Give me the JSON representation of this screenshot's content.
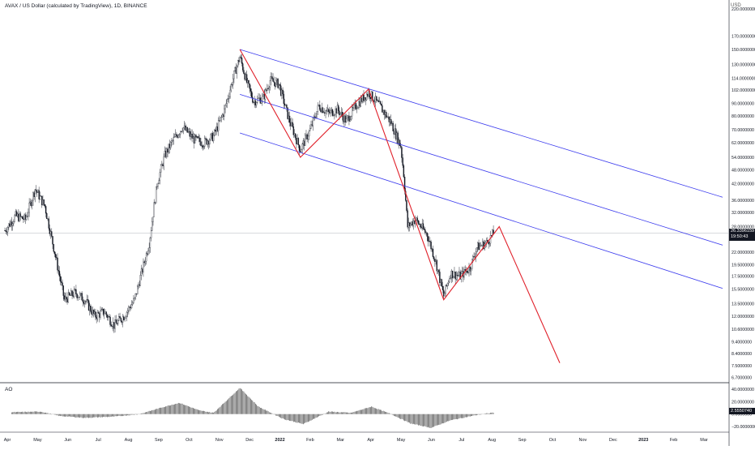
{
  "header": {
    "symbol_title": "AVAX / US Dollar (calculated by TradingView), 1D, BINANCE",
    "currency": "USD"
  },
  "price_scale": {
    "labels": [
      "220.0000000",
      "170.0000000",
      "150.0000000",
      "130.0000000",
      "114.0000000",
      "102.0000000",
      "90.0000000",
      "80.0000000",
      "70.0000000",
      "62.0000000",
      "54.0000000",
      "48.0000000",
      "42.0000000",
      "36.0000000",
      "32.0000000",
      "28.0000000",
      "22.0000000",
      "19.5000000",
      "17.5000000",
      "15.5000000",
      "13.5000000",
      "12.0000000",
      "10.6000000",
      "9.4000000",
      "8.4000000",
      "7.5000000",
      "6.7000000"
    ],
    "current_price": "26.3396159",
    "countdown": "19:50:43"
  },
  "indicator": {
    "title": "AO",
    "scale_labels": [
      "40.0000000",
      "20.0000000",
      "0.0000000",
      "−20.0000000"
    ],
    "current_value": "2.5550740"
  },
  "time_axis": {
    "labels": [
      "Apr",
      "May",
      "Jun",
      "Jul",
      "Aug",
      "Sep",
      "Oct",
      "Nov",
      "Dec",
      "2022",
      "Feb",
      "Mar",
      "Apr",
      "May",
      "Jun",
      "Jul",
      "Aug",
      "Sep",
      "Oct",
      "Nov",
      "Dec",
      "2023",
      "Feb",
      "Mar"
    ]
  },
  "colors": {
    "channel": "#3a3aee",
    "pattern": "#e0202a",
    "candle": "#131722",
    "grid_line": "#b2b5be"
  },
  "chart_data": {
    "type": "candlestick",
    "symbol": "AVAX/USD",
    "interval": "1D",
    "exchange": "BINANCE",
    "log_scale": true,
    "close_path": [
      [
        "2021-03-25",
        27
      ],
      [
        "2021-04-05",
        31
      ],
      [
        "2021-04-15",
        30
      ],
      [
        "2021-04-25",
        40
      ],
      [
        "2021-05-05",
        34
      ],
      [
        "2021-05-15",
        22
      ],
      [
        "2021-05-25",
        14
      ],
      [
        "2021-06-05",
        15
      ],
      [
        "2021-06-15",
        14
      ],
      [
        "2021-06-25",
        12
      ],
      [
        "2021-07-05",
        12.5
      ],
      [
        "2021-07-15",
        11
      ],
      [
        "2021-07-25",
        12
      ],
      [
        "2021-08-05",
        14
      ],
      [
        "2021-08-12",
        18
      ],
      [
        "2021-08-20",
        24
      ],
      [
        "2021-08-28",
        42
      ],
      [
        "2021-09-05",
        55
      ],
      [
        "2021-09-12",
        62
      ],
      [
        "2021-09-23",
        72
      ],
      [
        "2021-10-05",
        64
      ],
      [
        "2021-10-15",
        62
      ],
      [
        "2021-10-25",
        66
      ],
      [
        "2021-11-05",
        84
      ],
      [
        "2021-11-15",
        118
      ],
      [
        "2021-11-21",
        140
      ],
      [
        "2021-11-28",
        110
      ],
      [
        "2021-12-05",
        92
      ],
      [
        "2021-12-15",
        95
      ],
      [
        "2021-12-22",
        112
      ],
      [
        "2021-12-31",
        108
      ],
      [
        "2022-01-10",
        78
      ],
      [
        "2022-01-22",
        58
      ],
      [
        "2022-02-01",
        70
      ],
      [
        "2022-02-10",
        88
      ],
      [
        "2022-02-20",
        82
      ],
      [
        "2022-03-01",
        85
      ],
      [
        "2022-03-10",
        76
      ],
      [
        "2022-03-20",
        88
      ],
      [
        "2022-04-02",
        100
      ],
      [
        "2022-04-15",
        86
      ],
      [
        "2022-04-25",
        75
      ],
      [
        "2022-05-05",
        60
      ],
      [
        "2022-05-08",
        46
      ],
      [
        "2022-05-12",
        28
      ],
      [
        "2022-05-20",
        30
      ],
      [
        "2022-06-01",
        26
      ],
      [
        "2022-06-10",
        20
      ],
      [
        "2022-06-18",
        14.5
      ],
      [
        "2022-06-25",
        18
      ],
      [
        "2022-07-05",
        17.5
      ],
      [
        "2022-07-15",
        19
      ],
      [
        "2022-07-22",
        23
      ],
      [
        "2022-08-01",
        24
      ],
      [
        "2022-08-08",
        26.3
      ]
    ],
    "drawings": {
      "descending_channel": {
        "upper_line": [
          [
            "2021-11-21",
            150
          ],
          [
            "2023-03-31",
            37
          ]
        ],
        "middle_line": [
          [
            "2021-11-21",
            98
          ],
          [
            "2023-03-31",
            23.5
          ]
        ],
        "lower_line": [
          [
            "2021-11-21",
            68
          ],
          [
            "2023-03-31",
            15.6
          ]
        ]
      },
      "zigzag_projection": [
        [
          "2021-11-21",
          150
        ],
        [
          "2022-01-22",
          54
        ],
        [
          "2022-04-02",
          103
        ],
        [
          "2022-06-18",
          14
        ],
        [
          "2022-08-14",
          28
        ],
        [
          "2022-10-15",
          7.7
        ]
      ]
    },
    "ao": {
      "zero": 0,
      "range": [
        -25,
        45
      ],
      "series": [
        [
          "2021-04-01",
          3
        ],
        [
          "2021-05-01",
          4
        ],
        [
          "2021-05-20",
          -3
        ],
        [
          "2021-06-15",
          -6
        ],
        [
          "2021-07-15",
          -4
        ],
        [
          "2021-08-10",
          0
        ],
        [
          "2021-09-05",
          12
        ],
        [
          "2021-09-20",
          18
        ],
        [
          "2021-10-10",
          6
        ],
        [
          "2021-10-25",
          2
        ],
        [
          "2021-11-21",
          42
        ],
        [
          "2021-12-10",
          12
        ],
        [
          "2022-01-05",
          -8
        ],
        [
          "2022-01-25",
          -16
        ],
        [
          "2022-02-20",
          4
        ],
        [
          "2022-03-15",
          2
        ],
        [
          "2022-04-05",
          12
        ],
        [
          "2022-04-25",
          0
        ],
        [
          "2022-05-15",
          -15
        ],
        [
          "2022-06-05",
          -22
        ],
        [
          "2022-06-25",
          -10
        ],
        [
          "2022-07-20",
          -2
        ],
        [
          "2022-08-08",
          2.5555
        ]
      ]
    },
    "x_range": [
      "2021-03-20",
      "2023-04-05"
    ]
  }
}
